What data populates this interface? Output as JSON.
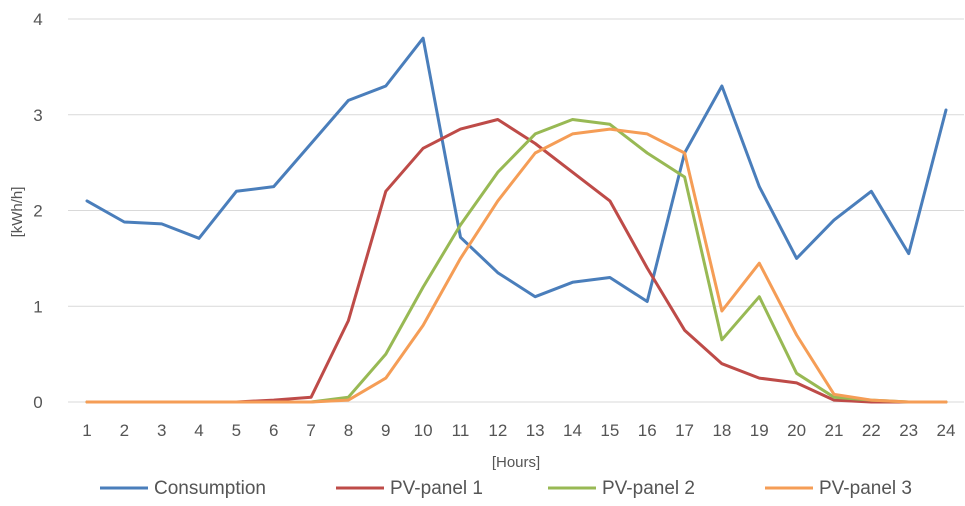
{
  "chart_data": {
    "type": "line",
    "title": "",
    "xlabel": "[Hours]",
    "ylabel": "[kWh/h]",
    "ylim": [
      0,
      4
    ],
    "yticks": [
      0,
      1,
      2,
      3,
      4
    ],
    "grid": true,
    "legend_position": "bottom",
    "categories": [
      "1",
      "2",
      "3",
      "4",
      "5",
      "6",
      "7",
      "8",
      "9",
      "10",
      "11",
      "12",
      "13",
      "14",
      "15",
      "16",
      "17",
      "18",
      "19",
      "20",
      "21",
      "22",
      "23",
      "24"
    ],
    "series": [
      {
        "name": "Consumption",
        "color": "#4a7ebb",
        "values": [
          2.1,
          1.88,
          1.86,
          1.71,
          2.2,
          2.25,
          2.7,
          3.15,
          3.3,
          3.8,
          1.72,
          1.35,
          1.1,
          1.25,
          1.3,
          1.05,
          2.6,
          3.3,
          2.25,
          1.5,
          1.9,
          2.2,
          1.55,
          3.05
        ]
      },
      {
        "name": "PV-panel 1",
        "color": "#be4b48",
        "values": [
          0,
          0,
          0,
          0,
          0,
          0.02,
          0.05,
          0.85,
          2.2,
          2.65,
          2.85,
          2.95,
          2.7,
          2.4,
          2.1,
          1.4,
          0.75,
          0.4,
          0.25,
          0.2,
          0.02,
          0,
          0,
          0
        ]
      },
      {
        "name": "PV-panel 2",
        "color": "#98b954",
        "values": [
          0,
          0,
          0,
          0,
          0,
          0,
          0,
          0.05,
          0.5,
          1.2,
          1.85,
          2.4,
          2.8,
          2.95,
          2.9,
          2.6,
          2.35,
          0.65,
          1.1,
          0.3,
          0.05,
          0.02,
          0,
          0
        ]
      },
      {
        "name": "PV-panel 3",
        "color": "#f59d56",
        "values": [
          0,
          0,
          0,
          0,
          0,
          0,
          0,
          0.02,
          0.25,
          0.8,
          1.5,
          2.1,
          2.6,
          2.8,
          2.85,
          2.8,
          2.6,
          0.95,
          1.45,
          0.7,
          0.08,
          0.02,
          0,
          0
        ]
      }
    ]
  }
}
